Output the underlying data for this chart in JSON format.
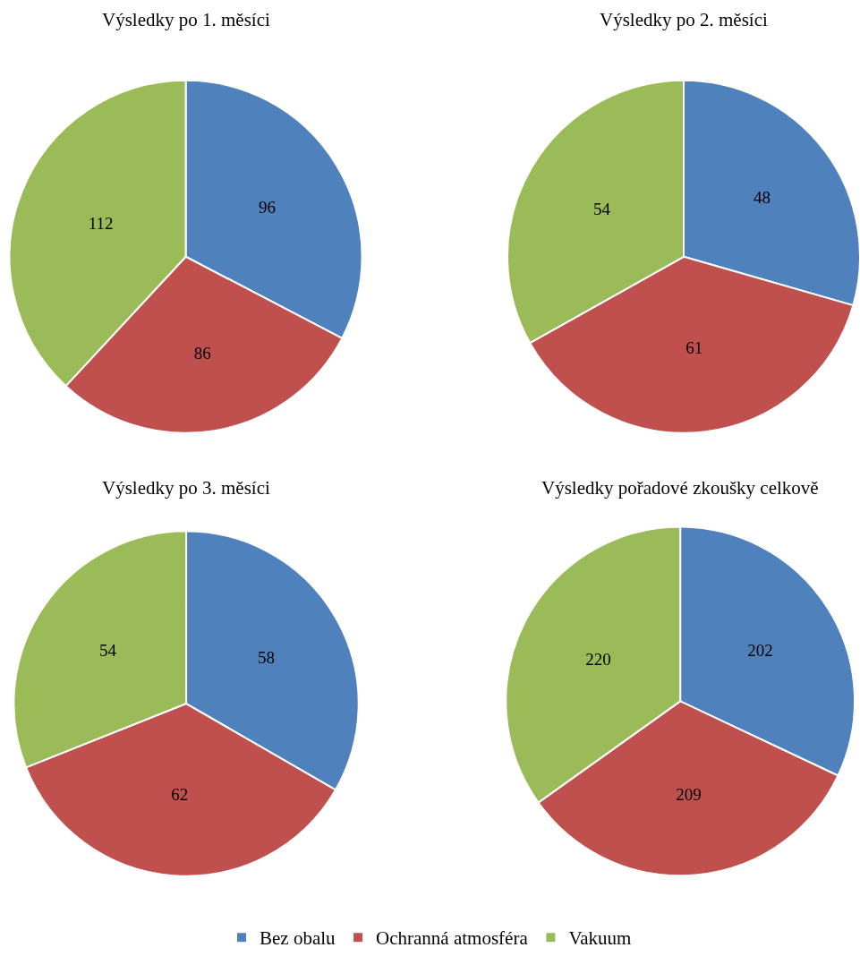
{
  "chart_data": [
    {
      "type": "pie",
      "title": "Výsledky po 1. měsíci",
      "categories": [
        "Bez obalu",
        "Ochranná atmosféra",
        "Vakuum"
      ],
      "values": [
        96,
        86,
        112
      ],
      "colors": [
        "#4f81bd",
        "#c0504d",
        "#9bbb59"
      ],
      "data_labels": true,
      "legend": "bottom"
    },
    {
      "type": "pie",
      "title": "Výsledky po 2. měsíci",
      "categories": [
        null,
        null,
        null
      ],
      "values": [
        48,
        61,
        54
      ],
      "colors": [
        "#4f81bd",
        "#c0504d",
        "#9bbb59"
      ],
      "data_labels": true
    },
    {
      "type": "pie",
      "title": "Výsledky po 3. měsíci",
      "categories": [
        null,
        null,
        null
      ],
      "values": [
        58,
        62,
        54
      ],
      "colors": [
        "#4f81bd",
        "#c0504d",
        "#9bbb59"
      ],
      "data_labels": true
    },
    {
      "type": "pie",
      "title": "Výsledky pořadové zkoušky celkově",
      "categories": [
        null,
        null,
        null
      ],
      "values": [
        202,
        209,
        220
      ],
      "colors": [
        "#4f81bd",
        "#c0504d",
        "#9bbb59"
      ],
      "data_labels": true
    }
  ]
}
